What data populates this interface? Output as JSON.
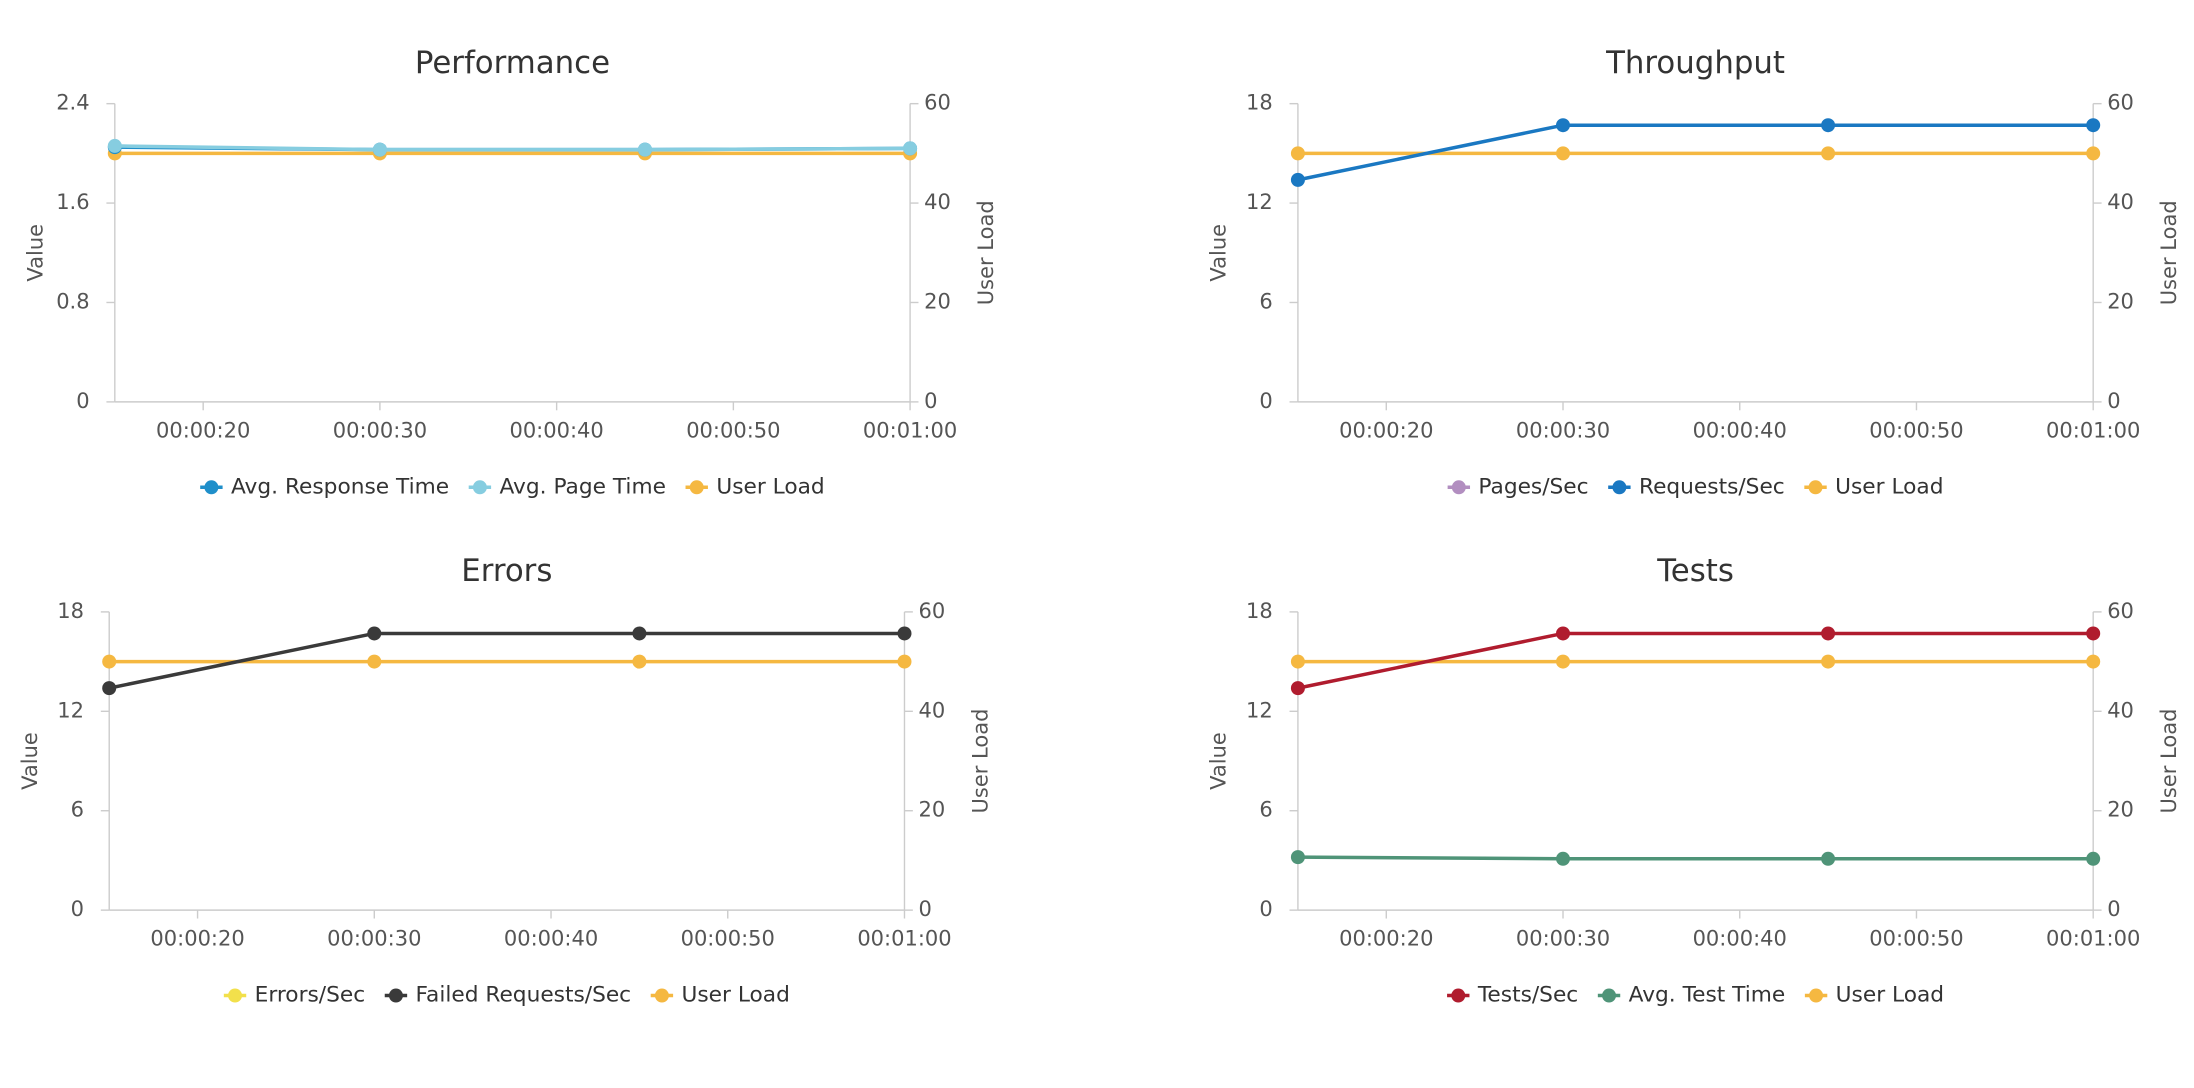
{
  "chart_data": [
    {
      "type": "line",
      "title": "Performance",
      "y_label": "Value",
      "y2_label": "User Load",
      "x": [
        15,
        30,
        45,
        60
      ],
      "xlim": [
        15,
        60
      ],
      "xticks": [
        {
          "value": 20,
          "label": "00:00:20"
        },
        {
          "value": 30,
          "label": "00:00:30"
        },
        {
          "value": 40,
          "label": "00:00:40"
        },
        {
          "value": 50,
          "label": "00:00:50"
        },
        {
          "value": 60,
          "label": "00:01:00"
        }
      ],
      "ylim": [
        0,
        2.4
      ],
      "yticks": [
        0,
        0.8,
        1.6,
        2.4
      ],
      "y2lim": [
        0,
        60
      ],
      "y2ticks": [
        0,
        20,
        40,
        60
      ],
      "series": [
        {
          "name": "Avg. Response Time",
          "color": "#1f8fca",
          "values": [
            2.05,
            2.03,
            2.03,
            2.04
          ]
        },
        {
          "name": "Avg. Page Time",
          "color": "#86cde0",
          "values": [
            2.06,
            2.03,
            2.03,
            2.04
          ]
        },
        {
          "name": "User Load",
          "color": "#f5b841",
          "axis": "y2",
          "values": [
            50,
            50,
            50,
            50
          ]
        }
      ]
    },
    {
      "type": "line",
      "title": "Throughput",
      "y_label": "Value",
      "y2_label": "User Load",
      "x": [
        15,
        30,
        45,
        60
      ],
      "xlim": [
        15,
        60
      ],
      "xticks": [
        {
          "value": 20,
          "label": "00:00:20"
        },
        {
          "value": 30,
          "label": "00:00:30"
        },
        {
          "value": 40,
          "label": "00:00:40"
        },
        {
          "value": 50,
          "label": "00:00:50"
        },
        {
          "value": 60,
          "label": "00:01:00"
        }
      ],
      "ylim": [
        0,
        18
      ],
      "yticks": [
        0,
        6,
        12,
        18
      ],
      "y2lim": [
        0,
        60
      ],
      "y2ticks": [
        0,
        20,
        40,
        60
      ],
      "series": [
        {
          "name": "Pages/Sec",
          "color": "#b28ec0",
          "values": [
            null,
            null,
            null,
            null
          ]
        },
        {
          "name": "Requests/Sec",
          "color": "#1a78c2",
          "values": [
            13.4,
            16.7,
            16.7,
            16.7
          ]
        },
        {
          "name": "User Load",
          "color": "#f5b841",
          "axis": "y2",
          "values": [
            50,
            50,
            50,
            50
          ]
        }
      ]
    },
    {
      "type": "line",
      "title": "Errors",
      "y_label": "Value",
      "y2_label": "User Load",
      "x": [
        15,
        30,
        45,
        60
      ],
      "xlim": [
        15,
        60
      ],
      "xticks": [
        {
          "value": 20,
          "label": "00:00:20"
        },
        {
          "value": 30,
          "label": "00:00:30"
        },
        {
          "value": 40,
          "label": "00:00:40"
        },
        {
          "value": 50,
          "label": "00:00:50"
        },
        {
          "value": 60,
          "label": "00:01:00"
        }
      ],
      "ylim": [
        0,
        18
      ],
      "yticks": [
        0,
        6,
        12,
        18
      ],
      "y2lim": [
        0,
        60
      ],
      "y2ticks": [
        0,
        20,
        40,
        60
      ],
      "series": [
        {
          "name": "Errors/Sec",
          "color": "#f2e04b",
          "values": [
            null,
            null,
            null,
            null
          ]
        },
        {
          "name": "Failed Requests/Sec",
          "color": "#3a3a3a",
          "values": [
            13.4,
            16.7,
            16.7,
            16.7
          ]
        },
        {
          "name": "User Load",
          "color": "#f5b841",
          "axis": "y2",
          "values": [
            50,
            50,
            50,
            50
          ]
        }
      ]
    },
    {
      "type": "line",
      "title": "Tests",
      "y_label": "Value",
      "y2_label": "User Load",
      "x": [
        15,
        30,
        45,
        60
      ],
      "xlim": [
        15,
        60
      ],
      "xticks": [
        {
          "value": 20,
          "label": "00:00:20"
        },
        {
          "value": 30,
          "label": "00:00:30"
        },
        {
          "value": 40,
          "label": "00:00:40"
        },
        {
          "value": 50,
          "label": "00:00:50"
        },
        {
          "value": 60,
          "label": "00:01:00"
        }
      ],
      "ylim": [
        0,
        18
      ],
      "yticks": [
        0,
        6,
        12,
        18
      ],
      "y2lim": [
        0,
        60
      ],
      "y2ticks": [
        0,
        20,
        40,
        60
      ],
      "series": [
        {
          "name": "Tests/Sec",
          "color": "#b01c2e",
          "values": [
            13.4,
            16.7,
            16.7,
            16.7
          ]
        },
        {
          "name": "Avg. Test Time",
          "color": "#4f9478",
          "values": [
            3.2,
            3.1,
            3.1,
            3.1
          ]
        },
        {
          "name": "User Load",
          "color": "#f5b841",
          "axis": "y2",
          "values": [
            50,
            50,
            50,
            50
          ]
        }
      ]
    }
  ]
}
